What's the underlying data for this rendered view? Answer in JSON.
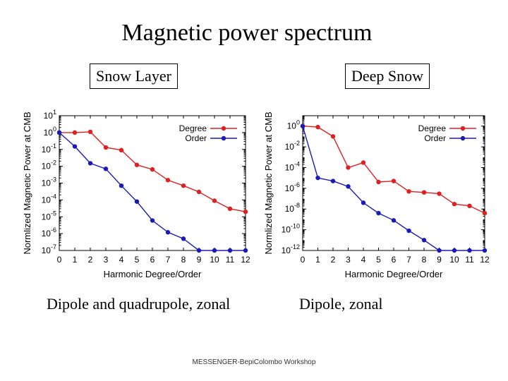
{
  "page": {
    "title": "Magnetic power spectrum",
    "left_box": "Snow Layer",
    "right_box": "Deep Snow",
    "left_caption": "Dipole and quadrupole, zonal",
    "right_caption": "Dipole, zonal",
    "footer": "MESSENGER-BepiColombo Workshop"
  },
  "chart_data": [
    {
      "type": "line",
      "log_y": true,
      "xlabel": "Harmonic Degree/Order",
      "ylabel": "Normlized Magnetic Power at CMB",
      "x": [
        0,
        1,
        2,
        3,
        4,
        5,
        6,
        7,
        8,
        9,
        10,
        11,
        12
      ],
      "xlim": [
        0,
        12
      ],
      "ylim_exp": [
        -7,
        1
      ],
      "ytick_exps": [
        1,
        0,
        -1,
        -2,
        -3,
        -4,
        -5,
        -6,
        -7
      ],
      "legend_position": "top-right",
      "series": [
        {
          "name": "Degree",
          "color": "#e02020",
          "values": [
            1,
            1,
            1.1,
            0.13,
            0.09,
            0.012,
            0.0065,
            0.0015,
            0.0007,
            0.0003,
            9e-05,
            3e-05,
            2e-05
          ]
        },
        {
          "name": "Order",
          "color": "#1a1ab8",
          "values": [
            1,
            0.15,
            0.015,
            0.007,
            0.0007,
            8e-05,
            6e-06,
            1.2e-06,
            5e-07,
            5e-08,
            5e-09,
            5e-10,
            1e-07
          ]
        }
      ]
    },
    {
      "type": "line",
      "log_y": true,
      "xlabel": "Harmonic Degree/Order",
      "ylabel": "Normlized Magnetic Power at CMB",
      "x": [
        0,
        1,
        2,
        3,
        4,
        5,
        6,
        7,
        8,
        9,
        10,
        11,
        12
      ],
      "xlim": [
        0,
        12
      ],
      "ylim_exp": [
        -12,
        1
      ],
      "ytick_exps": [
        0,
        -2,
        -4,
        -6,
        -8,
        -10,
        -12
      ],
      "legend_position": "top-right",
      "series": [
        {
          "name": "Degree",
          "color": "#e02020",
          "values": [
            1,
            0.8,
            0.1,
            0.0001,
            0.0003,
            4e-06,
            5e-06,
            5e-07,
            4e-07,
            3e-07,
            3e-08,
            2e-08,
            4e-09
          ]
        },
        {
          "name": "Order",
          "color": "#1a1ab8",
          "values": [
            1,
            1e-05,
            5e-06,
            1.5e-06,
            4e-08,
            4e-09,
            8e-10,
            8e-11,
            1e-11,
            1e-12,
            1e-13,
            1e-14,
            2e-15
          ]
        }
      ]
    }
  ]
}
